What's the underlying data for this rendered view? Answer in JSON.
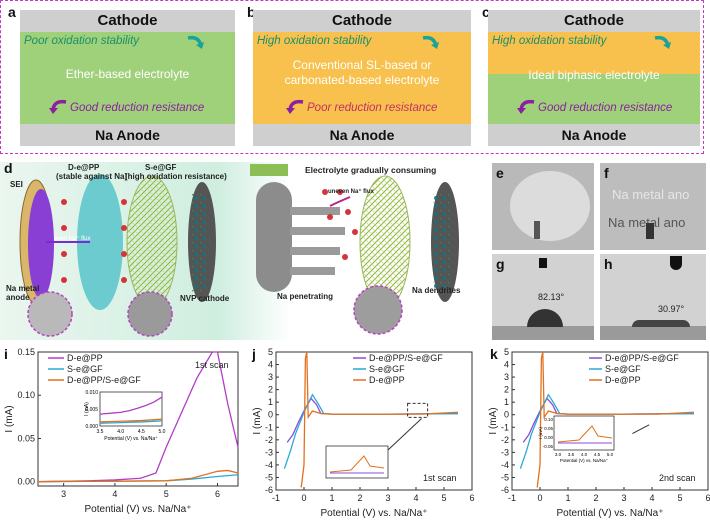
{
  "panel_letters": {
    "a": "a",
    "b": "b",
    "c": "c",
    "d": "d",
    "e": "e",
    "f": "f",
    "g": "g",
    "h": "h",
    "i": "i",
    "j": "j",
    "k": "k"
  },
  "schematic": {
    "cathode": "Cathode",
    "anode": "Na Anode",
    "a": {
      "top_text": "Poor oxidation stability",
      "middle": "Ether-based electrolyte",
      "bottom_text": "Good reduction resistance"
    },
    "b": {
      "top_text": "High oxidation stability",
      "middle_line1": "Conventional SL-based  or",
      "middle_line2": "carbonated-based electrolyte",
      "bottom_text": "Poor reduction resistance"
    },
    "c": {
      "top_text": "High oxidation stability",
      "middle": "Ideal biphasic electrolyte",
      "bottom_text": "Good reduction resistance"
    }
  },
  "d": {
    "sei": "SEI",
    "dpp_title": "D-e@PP",
    "dpp_sub": "(stable against Na)",
    "sgf_title": "S-e@GF",
    "sgf_sub": "(high oxidation resistance)",
    "flux_even": "even Na⁺ flux",
    "na_metal": "Na metal",
    "anode": "anode",
    "nvp": "NVP cathode",
    "consuming": "Electrolyte gradually consuming",
    "flux_uneven": "uneven Na⁺ flux",
    "penetrating": "Na penetrating",
    "dendrites": "Na dendrites"
  },
  "photos": {
    "f_text1": "Na metal ano",
    "f_text2": "Na metal ano",
    "g_angle": "82.13°",
    "h_angle": "30.97°"
  },
  "chart_data": [
    {
      "type": "line",
      "panel": "i",
      "xlabel": "Potential (V) vs. Na/Na⁺",
      "ylabel": "I (mA)",
      "xlim": [
        2.5,
        6.4
      ],
      "ylim": [
        -0.005,
        0.15
      ],
      "xticks": [
        "3",
        "4",
        "5",
        "6"
      ],
      "yticks": [
        "0.00",
        "0.05",
        "0.10",
        "0.15"
      ],
      "annotation": "1st scan",
      "series": [
        {
          "name": "D-e@PP",
          "color": "#b33cc8",
          "x": [
            2.5,
            3,
            3.5,
            4,
            4.5,
            4.8,
            5.0,
            5.3,
            5.6,
            5.9,
            6.0,
            6.2,
            6.4
          ],
          "y": [
            0,
            0.0005,
            0.001,
            0.002,
            0.004,
            0.01,
            0.04,
            0.08,
            0.12,
            0.15,
            0.15,
            0.09,
            0.04
          ]
        },
        {
          "name": "S-e@GF",
          "color": "#29a8d8",
          "x": [
            2.5,
            3,
            4,
            5,
            5.5,
            6,
            6.4
          ],
          "y": [
            0,
            0.0003,
            0.0005,
            0.001,
            0.003,
            0.006,
            0.008
          ]
        },
        {
          "name": "D-e@PP/S-e@GF",
          "color": "#e2711d",
          "x": [
            2.5,
            3,
            4,
            5,
            5.5,
            6,
            6.2,
            6.4
          ],
          "y": [
            0,
            0.0003,
            0.0006,
            0.001,
            0.004,
            0.012,
            0.013,
            0.01
          ]
        }
      ],
      "inset": {
        "xlim": [
          3.5,
          5.0
        ],
        "ylim": [
          0,
          0.01
        ],
        "xticks": [
          "3.5",
          "4.0",
          "4.5",
          "5.0"
        ],
        "yticks": [
          "0.000",
          "0.005",
          "0.010"
        ],
        "ylabel": "I (mA)",
        "xlabel": "Potential (V) vs. Na/Na⁺",
        "series": [
          {
            "color": "#b33cc8",
            "x": [
              3.5,
              3.8,
              4.0,
              4.2,
              4.4,
              4.6,
              4.8,
              5.0
            ],
            "y": [
              0.0035,
              0.0038,
              0.004,
              0.0045,
              0.0052,
              0.006,
              0.007,
              0.0085
            ]
          },
          {
            "color": "#29a8d8",
            "x": [
              3.5,
              4.0,
              4.5,
              5.0
            ],
            "y": [
              0.0008,
              0.001,
              0.0012,
              0.0015
            ]
          },
          {
            "color": "#e2711d",
            "x": [
              3.5,
              4.0,
              4.5,
              5.0
            ],
            "y": [
              0.0012,
              0.0014,
              0.0016,
              0.002
            ]
          }
        ]
      }
    },
    {
      "type": "line",
      "panel": "j",
      "xlabel": "Potential (V) vs. Na/Na⁺",
      "ylabel": "I (mA)",
      "xlim": [
        -1,
        6
      ],
      "ylim": [
        -6,
        5
      ],
      "xticks": [
        "-1",
        "0",
        "1",
        "2",
        "3",
        "4",
        "5",
        "6"
      ],
      "yticks": [
        "-6",
        "-5",
        "-4",
        "-3",
        "-2",
        "-1",
        "0",
        "1",
        "2",
        "3",
        "4",
        "5"
      ],
      "annotation": "1st scan",
      "series": [
        {
          "name": "D-e@PP/S-e@GF",
          "color": "#8a4dd6"
        },
        {
          "name": "S-e@GF",
          "color": "#29a8d8"
        },
        {
          "name": "D-e@PP",
          "color": "#e2711d"
        }
      ]
    },
    {
      "type": "line",
      "panel": "k",
      "xlabel": "Potential (V) vs. Na/Na⁺",
      "ylabel": "I (mA)",
      "xlim": [
        -1,
        6
      ],
      "ylim": [
        -6,
        5
      ],
      "xticks": [
        "-1",
        "0",
        "1",
        "2",
        "3",
        "4",
        "5",
        "6"
      ],
      "yticks": [
        "-6",
        "-5",
        "-4",
        "-3",
        "-2",
        "-1",
        "0",
        "1",
        "2",
        "3",
        "4",
        "5"
      ],
      "annotation": "2nd scan",
      "series": [
        {
          "name": "D-e@PP/S-e@GF",
          "color": "#8a4dd6"
        },
        {
          "name": "S-e@GF",
          "color": "#29a8d8"
        },
        {
          "name": "D-e@PP",
          "color": "#e2711d"
        }
      ],
      "inset": {
        "xticks": [
          "3.0",
          "3.5",
          "4.0",
          "4.5",
          "5.0"
        ],
        "yticks": [
          "-0.05",
          "0.00",
          "0.05",
          "0.10"
        ],
        "ylabel": "I (mA)",
        "xlabel": "Potential (V) vs. Na/Na⁺"
      }
    }
  ],
  "colors": {
    "frame": "#c438c8",
    "green": "#9fd07a",
    "orange": "#f8c04c",
    "grey": "#cfcfcf",
    "teal": "#1a8f6a",
    "purple": "#8d1fa3"
  }
}
